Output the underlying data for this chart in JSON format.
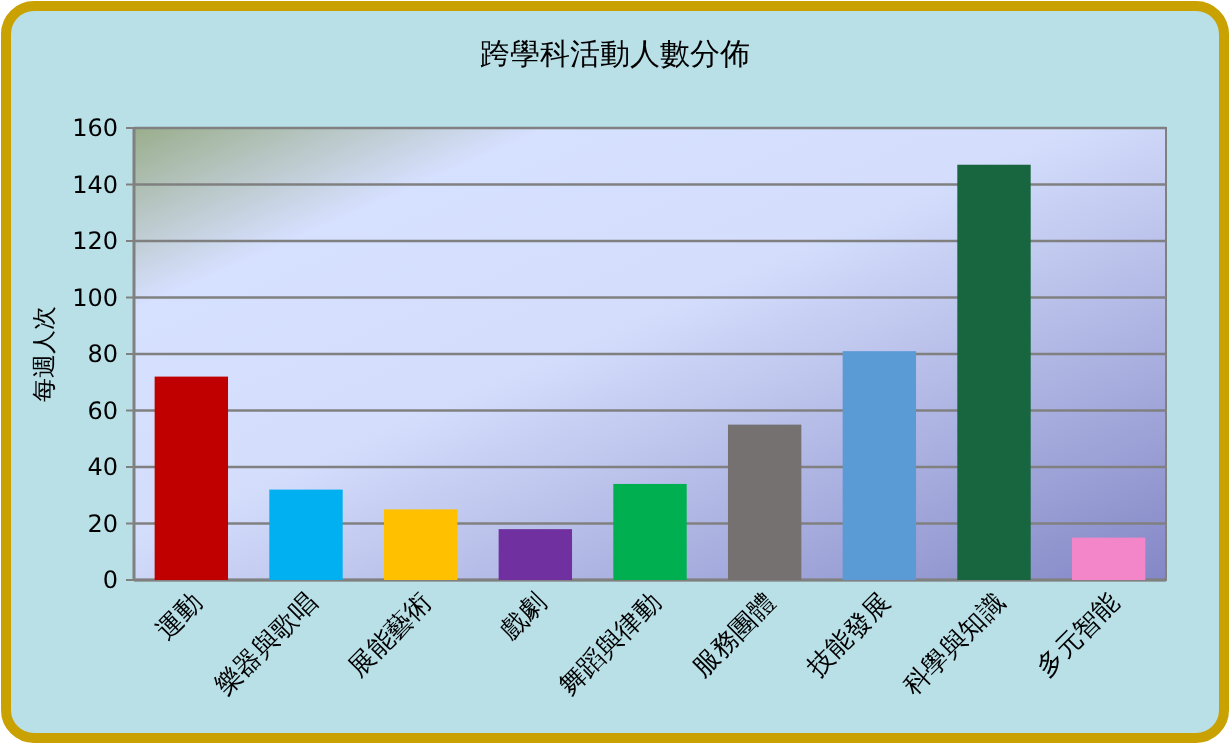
{
  "chart_data": {
    "type": "bar",
    "title": "跨學科活動人數分佈",
    "ylabel": "每週人次",
    "categories": [
      "運動",
      "樂器與歌唱",
      "展能藝術",
      "戲劇",
      "舞蹈與律動",
      "服務團體",
      "技能發展",
      "科學與知識",
      "多元智能"
    ],
    "values": [
      72,
      32,
      25,
      18,
      34,
      55,
      81,
      147,
      15
    ],
    "colors": [
      "#c00000",
      "#00b0f0",
      "#ffc000",
      "#7030a0",
      "#00b050",
      "#767171",
      "#5b9bd5",
      "#186640",
      "#f286c8"
    ],
    "ylim": [
      0,
      160
    ],
    "yticks": [
      0,
      20,
      40,
      60,
      80,
      100,
      120,
      140,
      160
    ],
    "grid": "y"
  }
}
